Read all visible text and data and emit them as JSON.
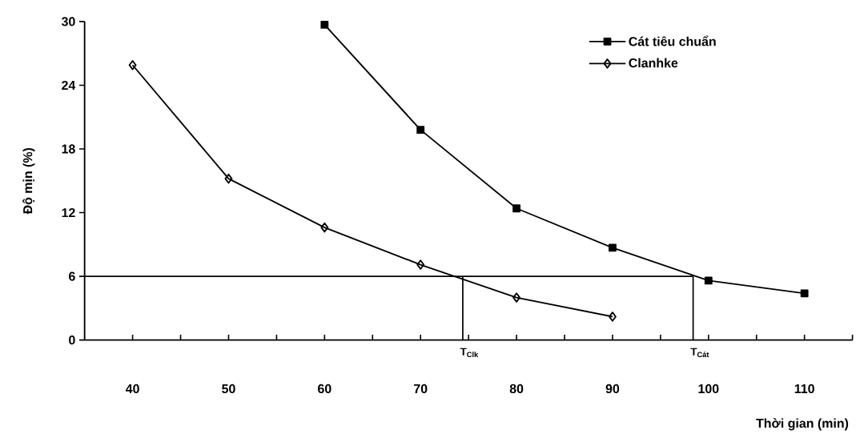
{
  "chart_data": {
    "type": "line",
    "xlabel": "Thời gian (min)",
    "ylabel": "Độ mịn (%)",
    "series": [
      {
        "name": "Cát tiêu chuẩn",
        "color": "#000000",
        "marker": "square",
        "x": [
          60,
          70,
          80,
          90,
          100,
          110
        ],
        "values": [
          29.7,
          19.8,
          12.4,
          8.7,
          5.6,
          4.4
        ]
      },
      {
        "name": "Clanhke",
        "color": "#000000",
        "marker": "diamond",
        "x": [
          40,
          50,
          60,
          70,
          80,
          90
        ],
        "values": [
          25.9,
          15.2,
          10.6,
          7.1,
          4.0,
          2.2
        ]
      }
    ],
    "xlim": [
      35,
      115
    ],
    "ylim": [
      0,
      30
    ],
    "xticks": [
      40,
      {
        "value": 45,
        "label": null
      },
      50,
      {
        "value": 55,
        "label": null
      },
      60,
      {
        "value": 65,
        "label": null
      },
      70,
      {
        "value": 75,
        "label": null
      },
      80,
      {
        "value": 85,
        "label": null
      },
      90,
      {
        "value": 95,
        "label": null
      },
      100,
      {
        "value": 105,
        "label": null
      },
      110,
      {
        "value": 115,
        "label": null
      }
    ],
    "yticks": [
      0,
      6,
      12,
      18,
      24,
      30
    ],
    "ref_lines": [
      {
        "axis": "y",
        "value": 6
      },
      {
        "axis": "x",
        "value": 74.4,
        "label": "T$_{Clk}$"
      },
      {
        "axis": "x",
        "value": 98.4,
        "label": "T$_{Cát}$"
      }
    ],
    "legend": "top right",
    "grid": false,
    "line_style": "solid"
  }
}
